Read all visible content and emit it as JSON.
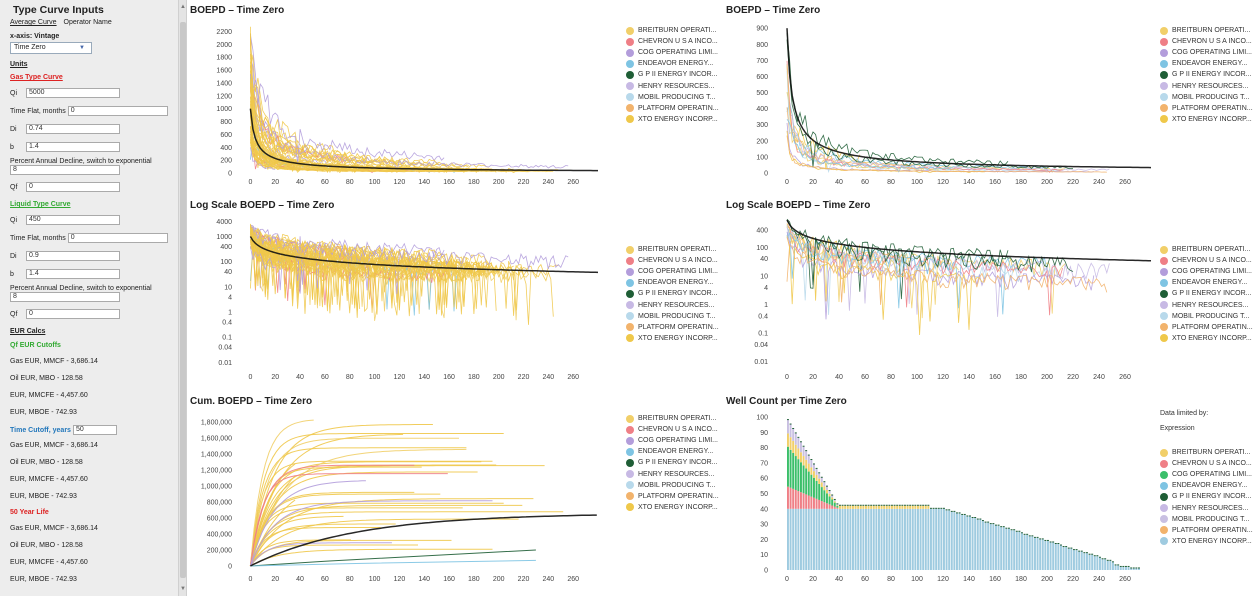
{
  "sidebar": {
    "title": "Type Curve Inputs",
    "tabs": [
      "Average Curve",
      "Operator Name"
    ],
    "xaxis_label": "x-axis: Vintage",
    "xaxis_value": "Time Zero",
    "units_label": "Units",
    "gas": {
      "header": "Gas Type Curve",
      "qi_label": "Qi",
      "qi_value": "5000",
      "time_flat_label": "Time Flat, months",
      "time_flat_value": "0",
      "di_label": "Di",
      "di_value": "0.74",
      "b_label": "b",
      "b_value": "1.4",
      "pad_label": "Percent Annual Decline, switch to exponential",
      "pad_value": "8",
      "qf_label": "Qf",
      "qf_value": "0"
    },
    "liquid": {
      "header": "Liquid Type Curve",
      "qi_label": "Qi",
      "qi_value": "450",
      "time_flat_label": "Time Flat, months",
      "time_flat_value": "0",
      "di_label": "Di",
      "di_value": "0.9",
      "b_label": "b",
      "b_value": "1.4",
      "pad_label": "Percent Annual Decline, switch to exponential",
      "pad_value": "8",
      "qf_label": "Qf",
      "qf_value": "0"
    },
    "eur": {
      "header": "EUR Calcs",
      "qf_cutoffs": "Qf EUR Cutoffs",
      "block1": [
        "Gas EUR, MMCF - 3,686.14",
        "Oil EUR, MBO - 128.58",
        "EUR, MMCFE - 4,457.60",
        "EUR, MBOE - 742.93"
      ],
      "time_cutoff_label": "Time Cutoff, years",
      "time_cutoff_value": "50",
      "block2": [
        "Gas EUR, MMCF - 3,686.14",
        "Oil EUR, MBO - 128.58",
        "EUR, MMCFE - 4,457.60",
        "EUR, MBOE - 742.93"
      ],
      "year_life": "50 Year Life",
      "block3": [
        "Gas EUR, MMCF - 3,686.14",
        "Oil EUR, MBO - 128.58",
        "EUR, MMCFE - 4,457.60",
        "EUR, MBOE - 742.93"
      ]
    }
  },
  "legend": [
    {
      "name": "BREITBURN OPERATI...",
      "color": "#f1cf69"
    },
    {
      "name": "CHEVRON U S A INCO...",
      "color": "#ef7f86"
    },
    {
      "name": "COG OPERATING LIMI...",
      "color": "#b39ddb"
    },
    {
      "name": "ENDEAVOR ENERGY...",
      "color": "#7ec4e3"
    },
    {
      "name": "G P II ENERGY INCOR...",
      "color": "#1f5e36"
    },
    {
      "name": "HENRY RESOURCES...",
      "color": "#c7b9e4"
    },
    {
      "name": "MOBIL PRODUCING T...",
      "color": "#b8d9eb"
    },
    {
      "name": "PLATFORM OPERATIN...",
      "color": "#f2b36c"
    },
    {
      "name": "XTO ENERGY INCORP...",
      "color": "#efc84a"
    }
  ],
  "well_count_legend": [
    {
      "name": "BREITBURN OPERATI...",
      "color": "#f1cf69"
    },
    {
      "name": "CHEVRON U S A INCO...",
      "color": "#ef7f86"
    },
    {
      "name": "COG OPERATING LIMI...",
      "color": "#3bbf6a"
    },
    {
      "name": "ENDEAVOR ENERGY...",
      "color": "#7ec4e3"
    },
    {
      "name": "G P II ENERGY INCOR...",
      "color": "#1f5e36"
    },
    {
      "name": "HENRY RESOURCES...",
      "color": "#c7b9e4"
    },
    {
      "name": "MOBIL PRODUCING T...",
      "color": "#c9c0e2"
    },
    {
      "name": "PLATFORM OPERATIN...",
      "color": "#f2b36c"
    },
    {
      "name": "XTO ENERGY INCORP...",
      "color": "#9fcbe0"
    }
  ],
  "well_count_note": [
    "Data limited by:",
    "Expression"
  ],
  "chart_data": [
    {
      "type": "line",
      "title": "BOEPD – Time Zero",
      "xticks": [
        0,
        20,
        40,
        60,
        80,
        100,
        120,
        140,
        160,
        180,
        200,
        220,
        240,
        260
      ],
      "yticks": [
        0,
        200,
        400,
        600,
        800,
        1000,
        1200,
        1400,
        1600,
        1800,
        2000,
        2200
      ],
      "ytick_labels": [
        "0",
        "200",
        "400",
        "600",
        "800",
        "1000",
        "1200",
        "1400",
        "1600",
        "1800",
        "2000",
        "2200"
      ],
      "xlim": [
        -10,
        280
      ],
      "ylim": [
        0,
        2300
      ],
      "log": false,
      "curve_qi": 1000,
      "note": "Many noisy well curves per operator plus a black average type curve"
    },
    {
      "type": "line",
      "title": "BOEPD – Time Zero",
      "xticks": [
        0,
        20,
        40,
        60,
        80,
        100,
        120,
        140,
        160,
        180,
        200,
        220,
        240,
        260
      ],
      "yticks": [
        0,
        100,
        200,
        300,
        400,
        500,
        600,
        700,
        800,
        900
      ],
      "ytick_labels": [
        "0",
        "100",
        "200",
        "300",
        "400",
        "500",
        "600",
        "700",
        "800",
        "900"
      ],
      "xlim": [
        -10,
        280
      ],
      "ylim": [
        0,
        920
      ],
      "log": false,
      "curve_qi": 900
    },
    {
      "type": "line",
      "title": "Log Scale BOEPD – Time Zero",
      "xticks": [
        0,
        20,
        40,
        60,
        80,
        100,
        120,
        140,
        160,
        180,
        200,
        220,
        240,
        260
      ],
      "yticks": [
        0.01,
        0.04,
        0.1,
        0.4,
        1,
        4,
        10,
        40,
        100,
        400,
        1000,
        4000
      ],
      "ytick_labels": [
        "0.01",
        "0.04",
        "0.1",
        "0.4",
        "1",
        "4",
        "10",
        "40",
        "100",
        "400",
        "1000",
        "4000"
      ],
      "xlim": [
        -10,
        280
      ],
      "ylim": [
        0.006,
        4500
      ],
      "log": true,
      "curve_qi": 1000
    },
    {
      "type": "line",
      "title": "Log Scale BOEPD – Time Zero",
      "xticks": [
        0,
        20,
        40,
        60,
        80,
        100,
        120,
        140,
        160,
        180,
        200,
        220,
        240,
        260
      ],
      "yticks": [
        0.01,
        0.04,
        0.1,
        0.4,
        1,
        4,
        10,
        40,
        100,
        400
      ],
      "ytick_labels": [
        "0.01",
        "0.04",
        "0.1",
        "0.4",
        "1",
        "4",
        "10",
        "40",
        "100",
        "400"
      ],
      "xlim": [
        -10,
        280
      ],
      "ylim": [
        0.006,
        900
      ],
      "log": true,
      "curve_qi": 900
    },
    {
      "type": "line",
      "title": "Cum. BOEPD – Time Zero",
      "xticks": [
        0,
        20,
        40,
        60,
        80,
        100,
        120,
        140,
        160,
        180,
        200,
        220,
        240,
        260
      ],
      "yticks": [
        0,
        200000,
        400000,
        600000,
        800000,
        1000000,
        1200000,
        1400000,
        1600000,
        1800000
      ],
      "ytick_labels": [
        "0",
        "200,000",
        "400,000",
        "600,000",
        "800,000",
        "1,000,000",
        "1,200,000",
        "1,400,000",
        "1,600,000",
        "1,800,000"
      ],
      "xlim": [
        -10,
        280
      ],
      "ylim": [
        -50000,
        1900000
      ],
      "log": false
    },
    {
      "type": "bar",
      "title": "Well Count per Time Zero",
      "xticks": [
        0,
        20,
        40,
        60,
        80,
        100,
        120,
        140,
        160,
        180,
        200,
        220,
        240,
        260
      ],
      "yticks": [
        0,
        10,
        20,
        30,
        40,
        50,
        60,
        70,
        80,
        90,
        100
      ],
      "ytick_labels": [
        "0",
        "10",
        "20",
        "30",
        "40",
        "50",
        "60",
        "70",
        "80",
        "90",
        "100"
      ],
      "xlim": [
        -10,
        280
      ],
      "ylim": [
        0,
        102
      ],
      "xto_counts_by_month": "≈40 wells for months 0–120, declining to 0 by ~270",
      "total_at_month_0": 98
    }
  ]
}
